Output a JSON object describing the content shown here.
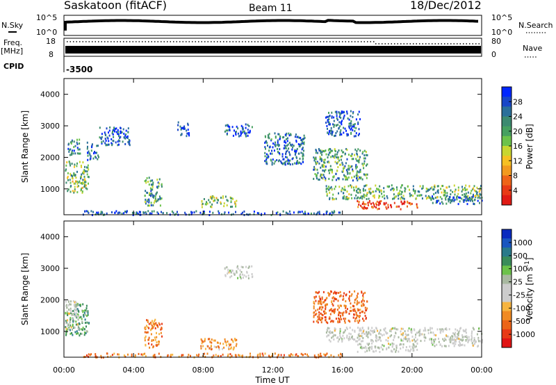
{
  "header": {
    "site": "Saskatoon (fitACF)",
    "beam": "Beam 11",
    "date": "18/Dec/2012"
  },
  "top_panels": {
    "nsky_label": "N.Sky",
    "nsearch_label": "N.Search",
    "nsky_ticks": [
      "10^5",
      "10^0"
    ],
    "nsearch_ticks": [
      "10^5",
      "10^0"
    ],
    "freq_label": "Freq.",
    "freq_unit": "[MHz]",
    "freq_ticks": [
      "18",
      "8"
    ],
    "nave_label": "Nave",
    "nave_ticks": [
      "80",
      "0"
    ],
    "cpid_label": "CPID",
    "cpid_value": "-3500"
  },
  "chart_data": [
    {
      "type": "heatmap",
      "panel": "power",
      "ylabel": "Slant Range [km]",
      "yticks": [
        "4000",
        "3000",
        "2000",
        "1000"
      ],
      "ylim": [
        180,
        4500
      ],
      "xlim": [
        0,
        24
      ],
      "colorbar_label": "Power [dB]",
      "colorbar_ticks": [
        "28",
        "24",
        "20",
        "16",
        "12",
        "8",
        "4"
      ],
      "colorscale": [
        "#0026ff",
        "#1846c8",
        "#2a6f9a",
        "#3c8a70",
        "#46a060",
        "#6cc24a",
        "#c8d630",
        "#f6c022",
        "#f29a1e",
        "#ee6418",
        "#e83a16",
        "#e01a14"
      ],
      "regions": [
        {
          "t0": 0.05,
          "t1": 1.4,
          "r0": 900,
          "r1": 1900,
          "level": 0.45
        },
        {
          "t0": 0.2,
          "t1": 0.9,
          "r0": 2100,
          "r1": 2600,
          "level": 0.25
        },
        {
          "t0": 1.3,
          "t1": 2.0,
          "r0": 1900,
          "r1": 2500,
          "level": 0.2
        },
        {
          "t0": 2.0,
          "t1": 3.8,
          "r0": 2400,
          "r1": 3000,
          "level": 0.15
        },
        {
          "t0": 4.6,
          "t1": 5.6,
          "r0": 500,
          "r1": 1400,
          "level": 0.35
        },
        {
          "t0": 7.8,
          "t1": 9.9,
          "r0": 450,
          "r1": 800,
          "level": 0.45
        },
        {
          "t0": 6.5,
          "t1": 7.2,
          "r0": 2700,
          "r1": 3200,
          "level": 0.1
        },
        {
          "t0": 9.2,
          "t1": 10.8,
          "r0": 2700,
          "r1": 3100,
          "level": 0.15
        },
        {
          "t0": 11.5,
          "t1": 13.8,
          "r0": 1800,
          "r1": 2800,
          "level": 0.2
        },
        {
          "t0": 14.3,
          "t1": 17.4,
          "r0": 1300,
          "r1": 2300,
          "level": 0.35
        },
        {
          "t0": 15.0,
          "t1": 17.0,
          "r0": 2700,
          "r1": 3500,
          "level": 0.15
        },
        {
          "t0": 15.0,
          "t1": 24.0,
          "r0": 700,
          "r1": 1150,
          "level": 0.4
        },
        {
          "t0": 16.8,
          "t1": 20.3,
          "r0": 380,
          "r1": 650,
          "level": 0.9
        },
        {
          "t0": 1.0,
          "t1": 16.0,
          "r0": 200,
          "r1": 330,
          "level": 0.15
        },
        {
          "t0": 21.0,
          "t1": 24.0,
          "r0": 550,
          "r1": 800,
          "level": 0.2
        }
      ]
    },
    {
      "type": "heatmap",
      "panel": "velocity",
      "ylabel": "Slant Range [km]",
      "yticks": [
        "4000",
        "3000",
        "2000",
        "1000"
      ],
      "ylim": [
        180,
        4500
      ],
      "xlim": [
        0,
        24
      ],
      "xticks": [
        "00:00",
        "04:00",
        "08:00",
        "12:00",
        "16:00",
        "20:00",
        "00:00"
      ],
      "xlabel": "Time UT",
      "colorbar_label": "Velocity [m s^-1]",
      "colorbar_ticks": [
        "1000",
        "500",
        "100",
        "25",
        "-25",
        "-100",
        "-500",
        "-1000"
      ],
      "colorscale": [
        "#0a2abf",
        "#1a56c0",
        "#2a7a8a",
        "#3a8c5a",
        "#6cc24a",
        "#a8b8a0",
        "#cccccc",
        "#cccccc",
        "#f6b440",
        "#f08a22",
        "#ec6418",
        "#e83a16",
        "#e01414"
      ],
      "regions": [
        {
          "t0": 0.05,
          "t1": 1.4,
          "r0": 900,
          "r1": 1900,
          "level": 0.3
        },
        {
          "t0": 0.05,
          "t1": 0.8,
          "r0": 1100,
          "r1": 2000,
          "level": 0.5
        },
        {
          "t0": 4.6,
          "t1": 5.6,
          "r0": 500,
          "r1": 1400,
          "level": 0.75
        },
        {
          "t0": 7.8,
          "t1": 9.9,
          "r0": 450,
          "r1": 800,
          "level": 0.72
        },
        {
          "t0": 9.2,
          "t1": 10.8,
          "r0": 2700,
          "r1": 3100,
          "level": 0.5
        },
        {
          "t0": 14.3,
          "t1": 17.4,
          "r0": 1300,
          "r1": 2300,
          "level": 0.8
        },
        {
          "t0": 15.0,
          "t1": 24.0,
          "r0": 700,
          "r1": 1150,
          "level": 0.5
        },
        {
          "t0": 16.8,
          "t1": 20.3,
          "r0": 380,
          "r1": 650,
          "level": 0.5
        },
        {
          "t0": 1.0,
          "t1": 16.0,
          "r0": 200,
          "r1": 330,
          "level": 0.75
        },
        {
          "t0": 21.0,
          "t1": 24.0,
          "r0": 550,
          "r1": 800,
          "level": 0.5
        }
      ]
    }
  ]
}
